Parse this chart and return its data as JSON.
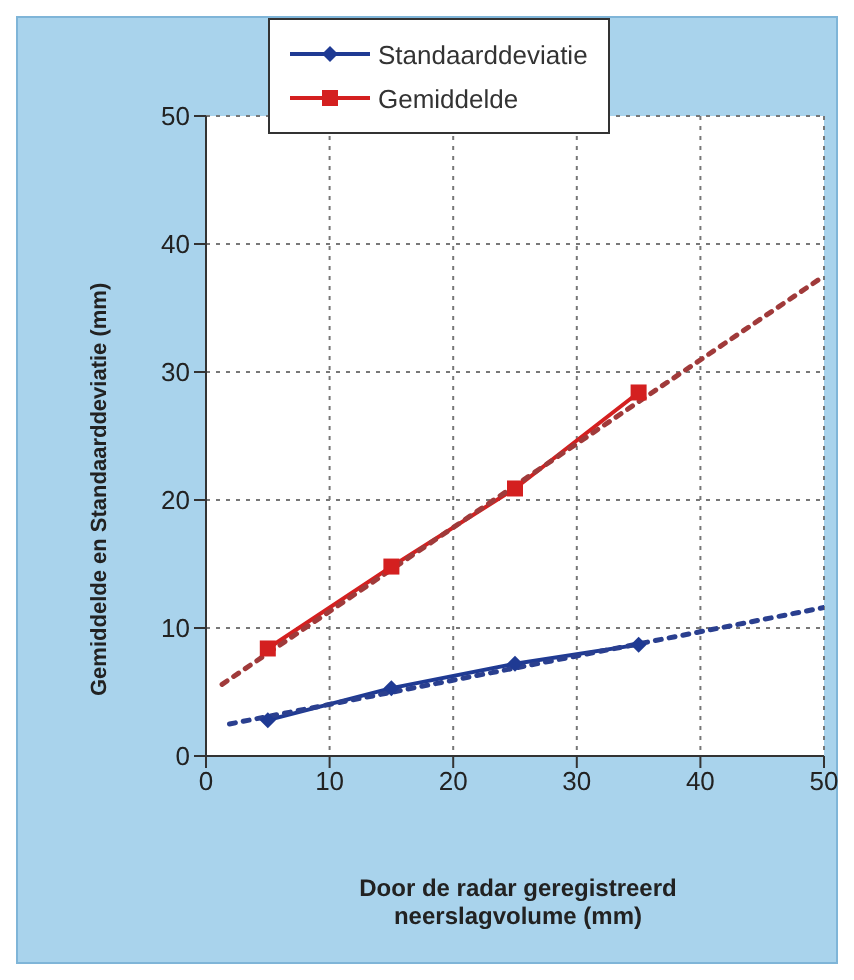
{
  "chart_data": {
    "type": "line",
    "xlabel": "Door de radar geregistreerd neerslagvolume (mm)",
    "ylabel": "Gemiddelde en Standaarddeviatie (mm)",
    "series": [
      {
        "name": "Standaarddeviatie",
        "color": "#1f3a93",
        "x": [
          5,
          15,
          25,
          35
        ],
        "values": [
          2.8,
          5.3,
          7.2,
          8.7
        ],
        "marker": "diamond",
        "line_style": "solid"
      },
      {
        "name": "Gemiddelde",
        "color": "#d42020",
        "x": [
          5,
          15,
          25,
          35
        ],
        "values": [
          8.4,
          14.8,
          20.9,
          28.4
        ],
        "marker": "square",
        "line_style": "solid"
      },
      {
        "type": "line",
        "color": "#2a3f8f",
        "x": [
          1.9,
          50
        ],
        "values": [
          2.5,
          11.6
        ],
        "marker": "none",
        "line_style": "dotted"
      },
      {
        "type": "line",
        "color": "#a03a3a",
        "x": [
          1.3,
          50
        ],
        "values": [
          5.6,
          37.5
        ],
        "marker": "none",
        "line_style": "dotted"
      }
    ],
    "xlim": [
      0,
      50
    ],
    "xticks": [
      0,
      10,
      20,
      30,
      40,
      50
    ],
    "ylim": [
      0,
      50
    ],
    "yticks": [
      0,
      10,
      20,
      30,
      40,
      50
    ],
    "grid": true,
    "legend": "top"
  }
}
